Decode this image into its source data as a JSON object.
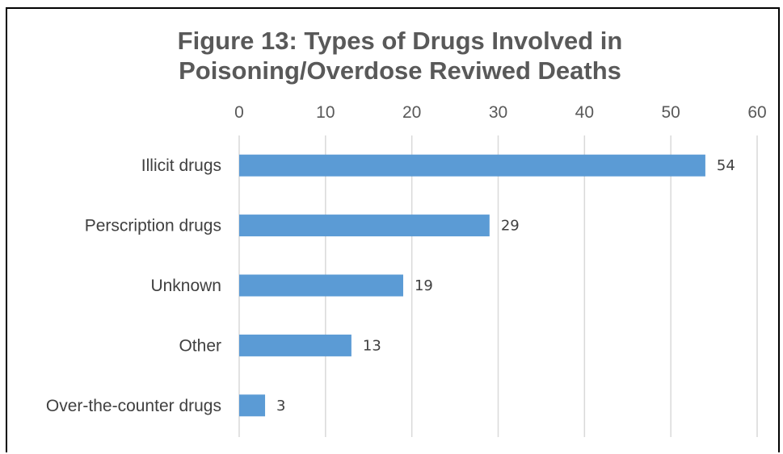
{
  "chart_data": {
    "type": "bar",
    "orientation": "horizontal",
    "title_lines": [
      "Figure 13: Types of Drugs Involved in",
      "Poisoning/Overdose Reviwed Deaths"
    ],
    "categories": [
      "Illicit drugs",
      "Perscription drugs",
      "Unknown",
      "Other",
      "Over-the-counter drugs"
    ],
    "values": [
      54,
      29,
      19,
      13,
      3
    ],
    "xlim": [
      0,
      60
    ],
    "xticks": [
      0,
      10,
      20,
      30,
      40,
      50,
      60
    ],
    "xaxis_position": "top",
    "grid": true,
    "data_labels": true,
    "legend": false,
    "bar_color": "#5B9BD5",
    "grid_color": "#D9D9D9"
  }
}
